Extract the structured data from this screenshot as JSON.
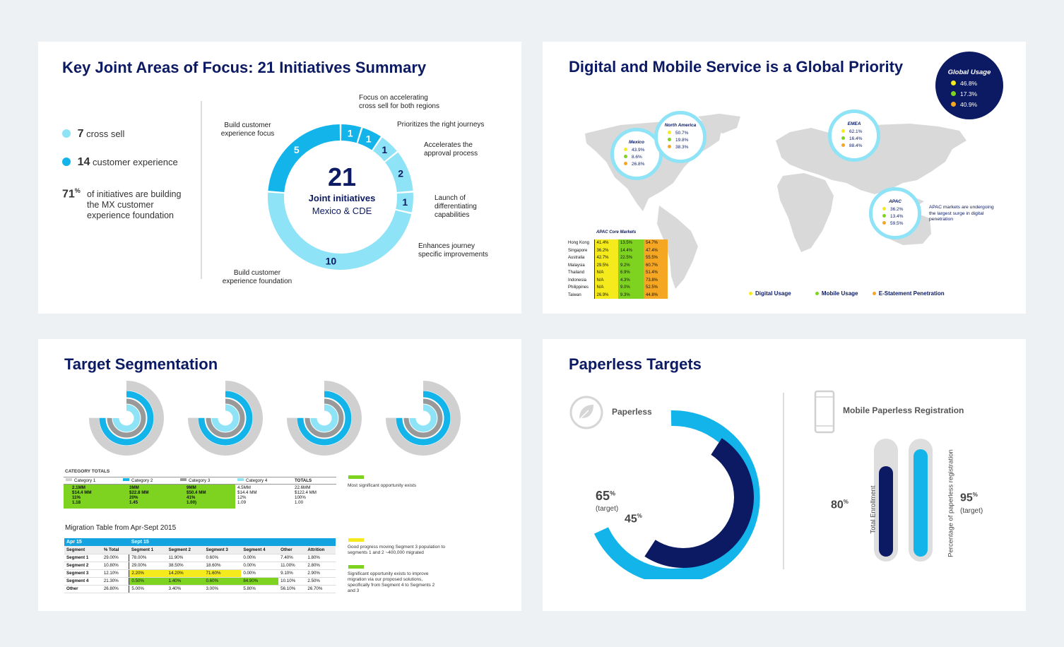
{
  "panel1": {
    "title": "Key Joint Areas of Focus: 21 Initiatives Summary",
    "legend": [
      {
        "number": "7",
        "label": "cross sell",
        "color": "#8fe3f7"
      },
      {
        "number": "14",
        "label": "customer experience",
        "color": "#13b4ea"
      }
    ],
    "pct": "71",
    "pct_sup": "%",
    "pct_text": "of initiatives are building the MX customer experience foundation",
    "center_number": "21",
    "center_line1": "Joint initiatives",
    "center_line2": "Mexico & CDE",
    "segments": [
      {
        "value": "1",
        "label": "Focus on accelerating cross sell for both regions"
      },
      {
        "value": "1",
        "label": "Prioritizes the right journeys"
      },
      {
        "value": "1",
        "label": "Accelerates the approval process"
      },
      {
        "value": "2",
        "label": "Launch of differentiating capabilities"
      },
      {
        "value": "1",
        "label": "Enhances journey specific improvements"
      },
      {
        "value": "10",
        "label": "Build customer experience foundation"
      },
      {
        "value": "5",
        "label": "Build customer experience focus"
      }
    ]
  },
  "panel2": {
    "title": "Digital and Mobile Service is a Global Priority",
    "global": {
      "title": "Global Usage",
      "values": [
        "46.8%",
        "17.3%",
        "40.9%"
      ]
    },
    "bubbles": [
      {
        "name": "Mexico",
        "values": [
          "43.9%",
          "8.6%",
          "26.8%"
        ]
      },
      {
        "name": "North America",
        "values": [
          "50.7%",
          "19.8%",
          "38.3%"
        ]
      },
      {
        "name": "EMEA",
        "values": [
          "62.1%",
          "16.4%",
          "88.4%"
        ]
      },
      {
        "name": "APAC",
        "values": [
          "36.2%",
          "13.4%",
          "59.5%"
        ]
      }
    ],
    "apac_note": "APAC markets are undergoing the largest surge in digital penetration",
    "apac_table_title": "APAC Core Markets",
    "apac_rows": [
      [
        "Hong Kong",
        "41.4%",
        "13.5%",
        "54.7%"
      ],
      [
        "Singapore",
        "36.2%",
        "14.4%",
        "47.4%"
      ],
      [
        "Australia",
        "42.7%",
        "22.5%",
        "55.5%"
      ],
      [
        "Malaysia",
        "29.5%",
        "9.2%",
        "60.7%"
      ],
      [
        "Thailand",
        "N/A",
        "6.9%",
        "51.4%"
      ],
      [
        "Indonesia",
        "N/A",
        "4.3%",
        "73.8%"
      ],
      [
        "Philippines",
        "N/A",
        "9.0%",
        "52.5%"
      ],
      [
        "Taiwan",
        "26.9%",
        "9.3%",
        "44.8%"
      ]
    ],
    "legend": [
      "Digital Usage",
      "Mobile Usage",
      "E-Statement Penetration"
    ],
    "colors": {
      "digital": "#f5ea1b",
      "mobile": "#7ed321",
      "estatement": "#f5a623"
    }
  },
  "panel3": {
    "title": "Target Segmentation",
    "category_title": "CATEGORY  TOTALS",
    "categories": [
      {
        "name": "Category 1",
        "lines": [
          "2.1MM",
          "$14.4 MM",
          "11%",
          "1.18"
        ]
      },
      {
        "name": "Category 2",
        "lines": [
          "3MM",
          "$22.8 MM",
          "20%",
          "1.45"
        ]
      },
      {
        "name": "Category 3",
        "lines": [
          "9MM",
          "$50.4 MM",
          "41%",
          "1.00)"
        ]
      },
      {
        "name": "Category 4",
        "lines": [
          "4.5MM",
          "$14.4 MM",
          "12%",
          "1.09"
        ]
      },
      {
        "name": "TOTALS",
        "lines": [
          "22.6MM",
          "$122.4 MM",
          "100%",
          "1.00"
        ]
      }
    ],
    "note1": "Most significant opportunity exists",
    "migration_title": "Migration Table from Apr-Sept 2015",
    "mig_head1": [
      "Apr 15",
      "Sept 15"
    ],
    "mig_head2": [
      "Segment",
      "% Total",
      "Segment 1",
      "Segment 2",
      "Segment 3",
      "Segment 4",
      "Other",
      "Attrition"
    ],
    "mig_rows": [
      [
        "Segment 1",
        "29.00%",
        "78.00%",
        "11.90%",
        "0.60%",
        "0.00%",
        "7.40%",
        "1.80%"
      ],
      [
        "Segment 2",
        "10.80%",
        "29.00%",
        "38.50%",
        "18.60%",
        "0.00%",
        "11.00%",
        "2.80%"
      ],
      [
        "Segment 3",
        "12.10%",
        "2.20%",
        "14.20%",
        "71.60%",
        "0.00%",
        "9.10%",
        "2.90%"
      ],
      [
        "Segment 4",
        "21.30%",
        "0.50%",
        "1.40%",
        "0.60%",
        "84.90%",
        "10.10%",
        "2.50%"
      ],
      [
        "Other",
        "26.80%",
        "5.00%",
        "3.40%",
        "3.00%",
        "5.80%",
        "56.10%",
        "26.70%"
      ]
    ],
    "note2": "Good progress moving Segment 3 population to segments 1 and 2 ~400,000 migrated",
    "note3": "Significant opportunity exists to improve migration via our proposed solutions, specifically from Segment 4 to Segments 2 and 3"
  },
  "panel4": {
    "title": "Paperless Targets",
    "paperless_label": "Paperless",
    "mobile_label": "Mobile Paperless Registration",
    "target_pct": "65",
    "target_word": "(target)",
    "current_pct": "45",
    "enroll_pct": "80",
    "enroll_label": "Total Enrollment",
    "reg_pct": "95",
    "reg_word": "(target)",
    "reg_label": "Percentage of paperless registration",
    "pct_sign": "%"
  }
}
